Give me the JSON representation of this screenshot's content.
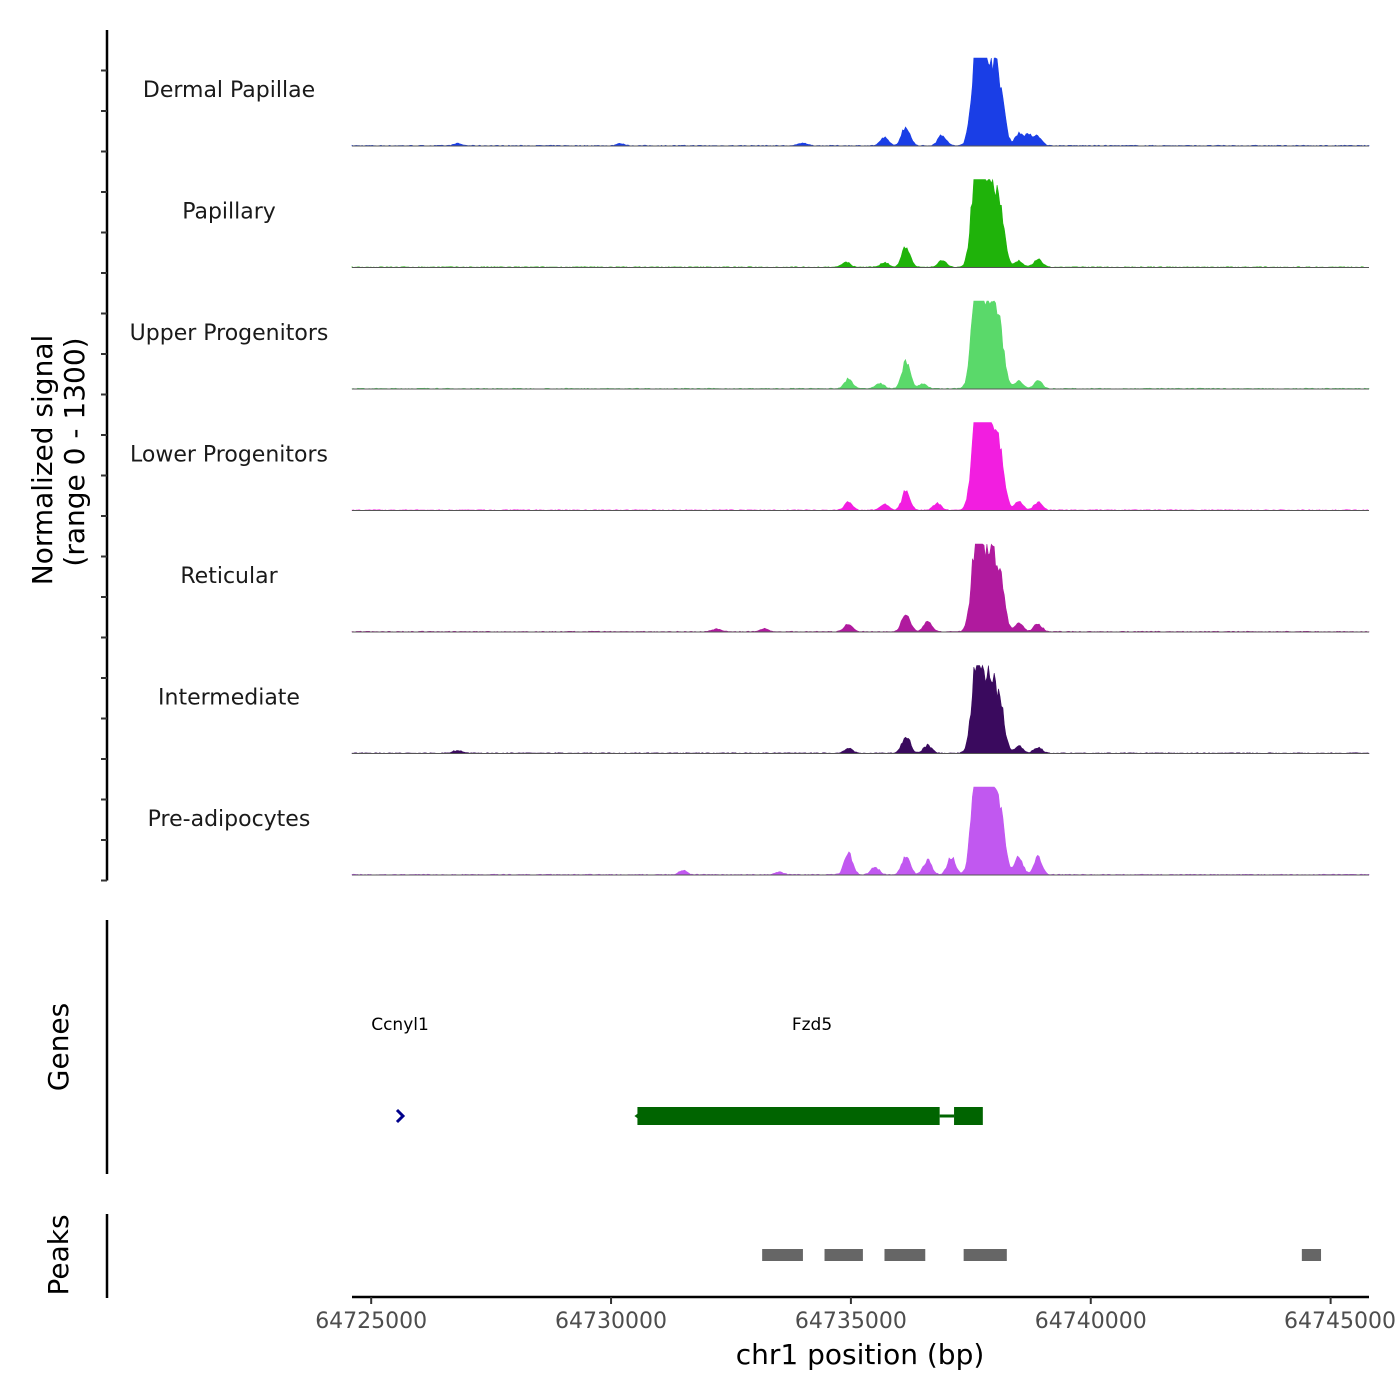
{
  "chart_data": {
    "type": "area",
    "region": {
      "chrom": "chr1",
      "start": 64724600,
      "end": 64745800
    },
    "ylabel_line1": "Normalized signal",
    "ylabel_line2": "(range 0 - 1300)",
    "y_range": [
      0,
      1300
    ],
    "xlabel": "chr1 position (bp)",
    "x_ticks": [
      64725000,
      64730000,
      64735000,
      64740000,
      64745000
    ],
    "x_tick_labels": [
      "64725000",
      "64730000",
      "64735000",
      "64740000",
      "64745000"
    ],
    "tracks": [
      {
        "name": "Dermal Papillae",
        "color": "#1a3ee6",
        "peaks": [
          [
            64736150,
            20
          ],
          [
            64737600,
            72
          ],
          [
            64737700,
            69
          ],
          [
            64737900,
            79
          ],
          [
            64738100,
            60
          ],
          [
            64735700,
            8
          ],
          [
            64736900,
            11
          ],
          [
            64738500,
            12
          ],
          [
            64738700,
            10
          ],
          [
            64738900,
            9
          ],
          [
            64734000,
            3
          ],
          [
            64726800,
            2
          ],
          [
            64730200,
            2
          ]
        ]
      },
      {
        "name": "Papillary",
        "color": "#1fb30a",
        "peaks": [
          [
            64736150,
            22
          ],
          [
            64737600,
            75
          ],
          [
            64737700,
            70
          ],
          [
            64737900,
            78
          ],
          [
            64738100,
            58
          ],
          [
            64734900,
            5
          ],
          [
            64736900,
            7
          ],
          [
            64738500,
            6
          ],
          [
            64738900,
            8
          ],
          [
            64735700,
            5
          ]
        ]
      },
      {
        "name": "Upper Progenitors",
        "color": "#5ad96a",
        "peaks": [
          [
            64736150,
            28
          ],
          [
            64737600,
            72
          ],
          [
            64737700,
            65
          ],
          [
            64737900,
            82
          ],
          [
            64738100,
            60
          ],
          [
            64734950,
            10
          ],
          [
            64738500,
            8
          ],
          [
            64738900,
            8
          ],
          [
            64735600,
            6
          ],
          [
            64736500,
            5
          ]
        ]
      },
      {
        "name": "Lower Progenitors",
        "color": "#f21ee0",
        "peaks": [
          [
            64736150,
            20
          ],
          [
            64737600,
            72
          ],
          [
            64737700,
            66
          ],
          [
            64737900,
            82
          ],
          [
            64738100,
            58
          ],
          [
            64734950,
            8
          ],
          [
            64736800,
            7
          ],
          [
            64738500,
            9
          ],
          [
            64738900,
            8
          ],
          [
            64735700,
            6
          ]
        ]
      },
      {
        "name": "Reticular",
        "color": "#b01a9e",
        "peaks": [
          [
            64736150,
            20
          ],
          [
            64737600,
            65
          ],
          [
            64737700,
            60
          ],
          [
            64737900,
            70
          ],
          [
            64738100,
            55
          ],
          [
            64734950,
            8
          ],
          [
            64736600,
            10
          ],
          [
            64738500,
            9
          ],
          [
            64738900,
            8
          ],
          [
            64732200,
            3
          ],
          [
            64733200,
            3
          ]
        ]
      },
      {
        "name": "Intermediate",
        "color": "#3a0a5e",
        "peaks": [
          [
            64736150,
            18
          ],
          [
            64737600,
            60
          ],
          [
            64737700,
            55
          ],
          [
            64737900,
            70
          ],
          [
            64738100,
            50
          ],
          [
            64734950,
            5
          ],
          [
            64736600,
            8
          ],
          [
            64738500,
            7
          ],
          [
            64738900,
            6
          ],
          [
            64726800,
            3
          ]
        ]
      },
      {
        "name": "Pre-adipocytes",
        "color": "#c158f0",
        "peaks": [
          [
            64734950,
            22
          ],
          [
            64736150,
            20
          ],
          [
            64737600,
            80
          ],
          [
            64737700,
            75
          ],
          [
            64737900,
            88
          ],
          [
            64738100,
            70
          ],
          [
            64736600,
            15
          ],
          [
            64737100,
            18
          ],
          [
            64738500,
            18
          ],
          [
            64738900,
            18
          ],
          [
            64735500,
            8
          ],
          [
            64731500,
            4
          ],
          [
            64733500,
            3
          ]
        ]
      }
    ],
    "genes_label": "Genes",
    "genes": [
      {
        "name": "Ccnyl1",
        "color": "#00008b",
        "start": 64725500,
        "end": 64725700,
        "strand": "+"
      },
      {
        "name": "Fzd5",
        "color": "#006400",
        "start": 64730550,
        "end": 64737750,
        "strand": "-",
        "exons": [
          [
            64730550,
            64736850
          ],
          [
            64737150,
            64737750
          ]
        ]
      }
    ],
    "peaks_label": "Peaks",
    "peak_regions": [
      [
        64733150,
        64734000
      ],
      [
        64734450,
        64735250
      ],
      [
        64735700,
        64736550
      ],
      [
        64737350,
        64738250
      ],
      [
        64744400,
        64744800
      ]
    ]
  }
}
